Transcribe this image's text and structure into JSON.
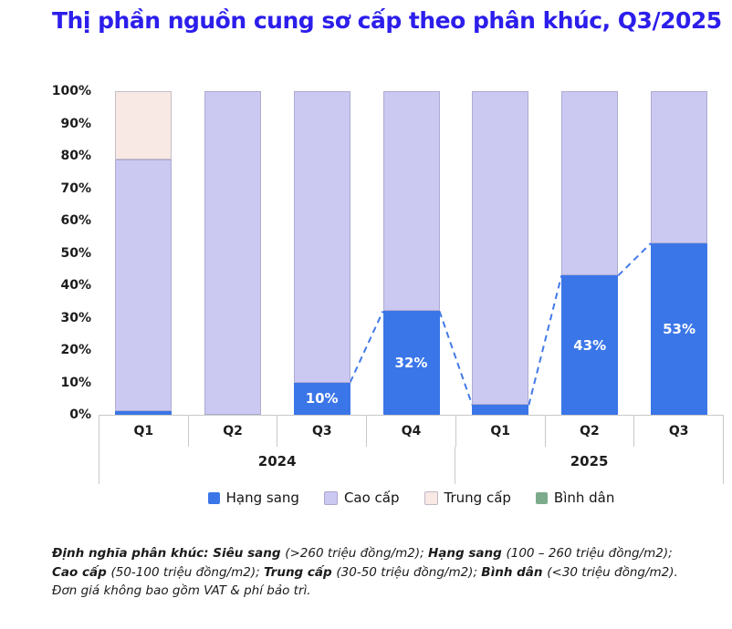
{
  "title": "Thị phần nguồn cung sơ cấp theo phân khúc, Q3/2025",
  "colors": {
    "title": "#2C1EEB",
    "hang_sang": "#3B76E8",
    "cao_cap": "#CBC8F2",
    "trung_cap": "#F8E9E5",
    "binh_dan": "#7CAB8C",
    "axis_line": "#C9C9C9",
    "trend_line": "#4379E8",
    "bar_label_text": "#FFFFFF",
    "text": "#1C1C1C"
  },
  "chart_data": {
    "type": "bar",
    "stacked": true,
    "orientation": "vertical",
    "unit": "%",
    "categories": [
      "Q1",
      "Q2",
      "Q3",
      "Q4",
      "Q1",
      "Q2",
      "Q3"
    ],
    "year_groups": [
      {
        "label": "2024",
        "span": 4
      },
      {
        "label": "2025",
        "span": 3
      }
    ],
    "series": [
      {
        "key": "hang_sang",
        "name": "Hạng sang",
        "values": [
          1,
          0,
          10,
          32,
          3,
          43,
          53
        ]
      },
      {
        "key": "cao_cap",
        "name": "Cao cấp",
        "values": [
          78,
          100,
          90,
          68,
          97,
          57,
          47
        ]
      },
      {
        "key": "trung_cap",
        "name": "Trung cấp",
        "values": [
          21,
          0,
          0,
          0,
          0,
          0,
          0
        ]
      },
      {
        "key": "binh_dan",
        "name": "Bình dân",
        "values": [
          0,
          0,
          0,
          0,
          0,
          0,
          0
        ]
      }
    ],
    "bar_labels": [
      "",
      "",
      "10%",
      "32%",
      "",
      "43%",
      "53%"
    ],
    "y_ticks": [
      "100%",
      "90%",
      "80%",
      "70%",
      "60%",
      "50%",
      "40%",
      "30%",
      "20%",
      "10%",
      "0%"
    ],
    "ylim": [
      0,
      100
    ],
    "grid": false,
    "legend_position": "bottom",
    "trend_line": {
      "series": "hang_sang",
      "style": "dashed",
      "segments": [
        [
          2,
          3
        ],
        [
          3,
          4
        ],
        [
          4,
          5
        ],
        [
          5,
          6
        ]
      ]
    }
  },
  "legend": {
    "items": [
      {
        "key": "hang_sang",
        "label": "Hạng sang"
      },
      {
        "key": "cao_cap",
        "label": "Cao cấp"
      },
      {
        "key": "trung_cap",
        "label": "Trung cấp"
      },
      {
        "key": "binh_dan",
        "label": "Bình dân"
      }
    ]
  },
  "footnote": {
    "segments": [
      {
        "text": "Định nghĩa phân khúc: Siêu sang ",
        "bold": true
      },
      {
        "text": "(>260 triệu đồng/m2); ",
        "bold": false
      },
      {
        "text": "Hạng sang ",
        "bold": true
      },
      {
        "text": "(100 – 260 triệu đồng/m2); ",
        "bold": false
      },
      {
        "text": "Cao cấp ",
        "bold": true
      },
      {
        "text": "(50-100 triệu đồng/m2); ",
        "bold": false
      },
      {
        "text": "Trung cấp ",
        "bold": true
      },
      {
        "text": "(30-50 triệu đồng/m2); ",
        "bold": false
      },
      {
        "text": "Bình dân ",
        "bold": true
      },
      {
        "text": "(<30 triệu đồng/m2). Đơn giá không bao gồm VAT & phí bảo trì.",
        "bold": false
      }
    ]
  }
}
